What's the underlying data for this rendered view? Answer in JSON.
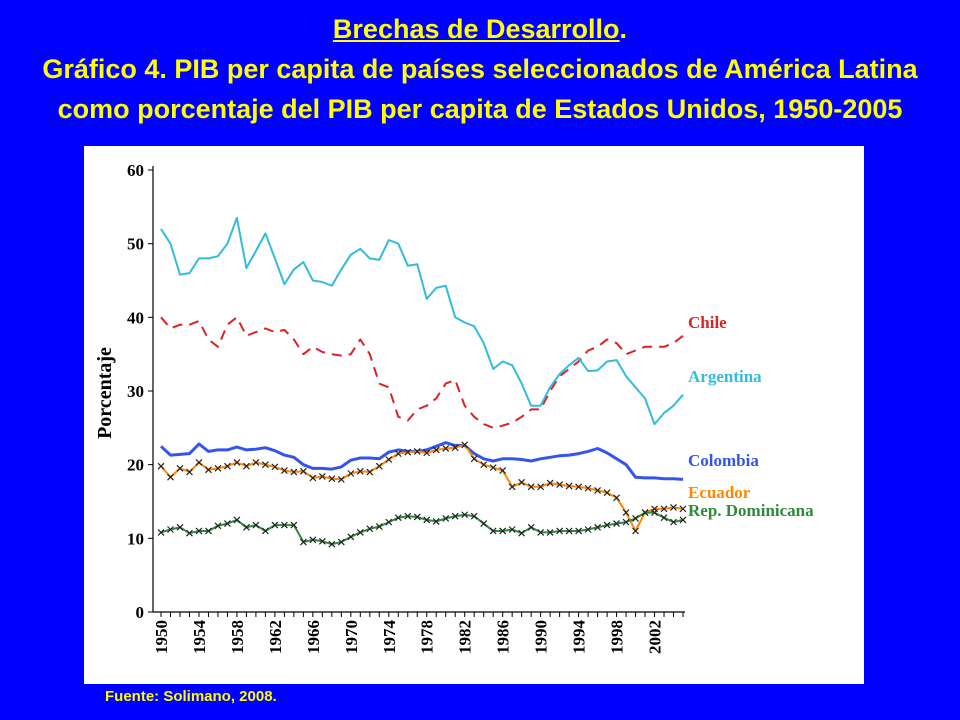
{
  "header": {
    "title_main": "Brechas de Desarrollo",
    "title_dot": ".",
    "title_line2": "Gráfico 4. PIB per capita de países seleccionados de América Latina",
    "title_line3": "como porcentaje del PIB per capita de Estados Unidos, 1950-2005"
  },
  "source": "Fuente: Solimano, 2008.",
  "chart_data": {
    "type": "line",
    "title": "",
    "xlabel": "",
    "ylabel": "Porcentaje",
    "ylim": [
      0,
      60
    ],
    "yticks": [
      0,
      10,
      20,
      30,
      40,
      50,
      60
    ],
    "xticks": [
      1950,
      1954,
      1958,
      1962,
      1966,
      1970,
      1974,
      1978,
      1982,
      1986,
      1990,
      1994,
      1998,
      2002
    ],
    "x_range": [
      1950,
      2005
    ],
    "grid": false,
    "legend": "inline labels at right end of lines",
    "x": [
      1950,
      1951,
      1952,
      1953,
      1954,
      1955,
      1956,
      1957,
      1958,
      1959,
      1960,
      1961,
      1962,
      1963,
      1964,
      1965,
      1966,
      1967,
      1968,
      1969,
      1970,
      1971,
      1972,
      1973,
      1974,
      1975,
      1976,
      1977,
      1978,
      1979,
      1980,
      1981,
      1982,
      1983,
      1984,
      1985,
      1986,
      1987,
      1988,
      1989,
      1990,
      1991,
      1992,
      1993,
      1994,
      1995,
      1996,
      1997,
      1998,
      1999,
      2000,
      2001,
      2002,
      2003,
      2004,
      2005
    ],
    "series": [
      {
        "name": "Chile",
        "color": "#dd2222",
        "style": "dashed",
        "marker": "none",
        "values": [
          40.0,
          38.5,
          39.0,
          39.0,
          39.5,
          37.0,
          36.0,
          39.0,
          40.0,
          37.5,
          38.0,
          38.5,
          38.0,
          38.3,
          37.0,
          35.0,
          36.0,
          35.3,
          35.0,
          34.8,
          35.0,
          37.0,
          35.0,
          31.0,
          30.5,
          26.5,
          26.0,
          27.5,
          28.0,
          29.0,
          31.0,
          31.5,
          28.0,
          26.5,
          25.5,
          25.0,
          25.3,
          25.7,
          26.5,
          27.5,
          27.5,
          30.0,
          32.0,
          33.0,
          34.0,
          35.5,
          36.0,
          37.0,
          36.5,
          35.0,
          35.5,
          36.0,
          36.0,
          36.0,
          36.5,
          37.5
        ]
      },
      {
        "name": "Argentina",
        "color": "#33bbdd",
        "style": "solid",
        "marker": "none",
        "values": [
          52.0,
          50.0,
          45.8,
          46.0,
          48.0,
          48.0,
          48.3,
          50.0,
          53.5,
          46.7,
          49.0,
          51.4,
          48.0,
          44.5,
          46.5,
          47.5,
          45.0,
          44.8,
          44.3,
          46.5,
          48.5,
          49.3,
          48.0,
          47.8,
          50.5,
          50.0,
          47.0,
          47.2,
          42.5,
          44.0,
          44.3,
          40.0,
          39.3,
          38.8,
          36.5,
          33.0,
          34.0,
          33.5,
          31.0,
          28.0,
          28.0,
          30.5,
          32.3,
          33.5,
          34.5,
          32.7,
          32.8,
          34.0,
          34.2,
          32.0,
          30.5,
          29.0,
          25.5,
          27.0,
          28.0,
          29.5
        ]
      },
      {
        "name": "Colombia",
        "color": "#3355ee",
        "style": "solid",
        "marker": "none",
        "values": [
          22.5,
          21.3,
          21.4,
          21.5,
          22.8,
          21.8,
          22.0,
          22.0,
          22.4,
          22.0,
          22.1,
          22.3,
          21.9,
          21.3,
          21.0,
          20.0,
          19.5,
          19.5,
          19.4,
          19.7,
          20.6,
          20.9,
          20.9,
          20.8,
          21.7,
          22.0,
          21.8,
          21.8,
          22.0,
          22.5,
          23.0,
          22.6,
          22.6,
          21.5,
          20.8,
          20.5,
          20.8,
          20.8,
          20.7,
          20.5,
          20.8,
          21.0,
          21.2,
          21.3,
          21.5,
          21.8,
          22.2,
          21.6,
          20.8,
          20.0,
          18.3,
          18.2,
          18.2,
          18.1,
          18.1,
          18.0
        ]
      },
      {
        "name": "Ecuador",
        "color": "#ff8800",
        "style": "solid",
        "marker": "x",
        "values": [
          19.8,
          18.3,
          19.5,
          19.0,
          20.3,
          19.3,
          19.5,
          19.8,
          20.3,
          19.8,
          20.3,
          20.0,
          19.7,
          19.2,
          19.0,
          19.1,
          18.2,
          18.4,
          18.1,
          18.0,
          18.8,
          19.1,
          19.0,
          19.8,
          20.7,
          21.5,
          21.7,
          21.8,
          21.6,
          22.0,
          22.2,
          22.3,
          22.7,
          20.8,
          20.0,
          19.6,
          19.2,
          17.0,
          17.6,
          17.0,
          17.0,
          17.5,
          17.3,
          17.1,
          17.0,
          16.8,
          16.5,
          16.2,
          15.5,
          13.5,
          11.0,
          13.5,
          14.0,
          14.0,
          14.2,
          14.0
        ]
      },
      {
        "name": "Rep. Dominicana",
        "color": "#2f8a3c",
        "style": "solid",
        "marker": "x",
        "values": [
          10.8,
          11.2,
          11.5,
          10.7,
          11.0,
          11.0,
          11.7,
          12.0,
          12.5,
          11.5,
          11.8,
          11.0,
          11.8,
          11.8,
          11.8,
          9.5,
          9.8,
          9.6,
          9.2,
          9.5,
          10.2,
          10.8,
          11.3,
          11.6,
          12.2,
          12.8,
          13.0,
          12.9,
          12.5,
          12.3,
          12.7,
          13.0,
          13.2,
          13.0,
          12.0,
          11.0,
          11.0,
          11.2,
          10.7,
          11.5,
          10.8,
          10.8,
          11.0,
          11.0,
          11.0,
          11.2,
          11.5,
          11.8,
          12.0,
          12.2,
          12.7,
          13.5,
          13.5,
          12.8,
          12.2,
          12.5
        ]
      }
    ]
  }
}
